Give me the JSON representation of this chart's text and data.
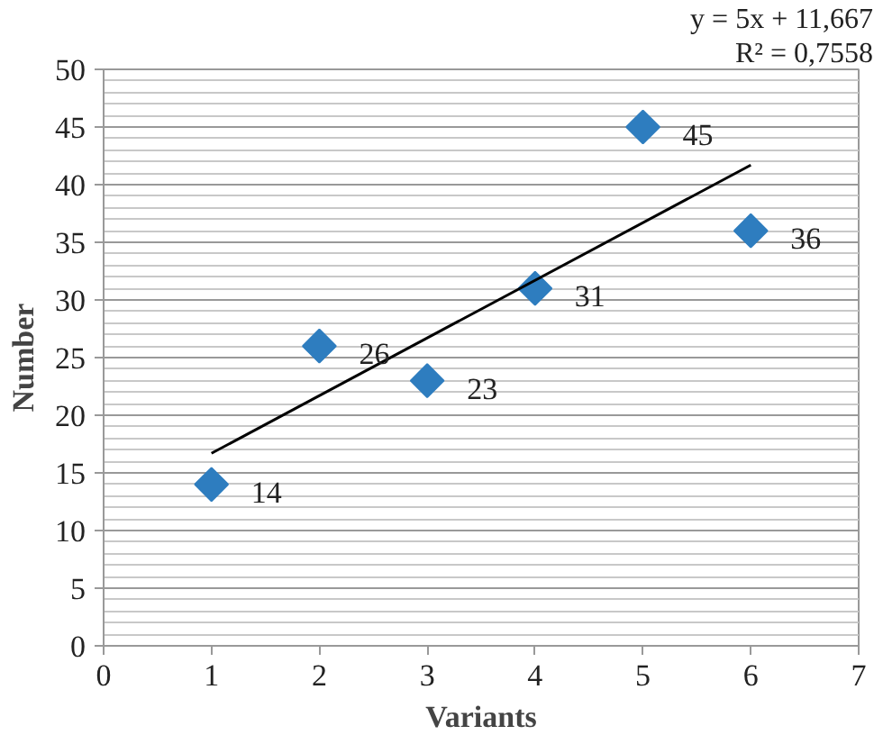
{
  "chart_data": {
    "type": "scatter",
    "xlabel": "Variants",
    "ylabel": "Number",
    "annotations": [
      "y = 5x + 11,667",
      "R² = 0,7558"
    ],
    "series": [
      {
        "color": "#2e7dbf",
        "x": [
          1,
          2,
          3,
          4,
          5,
          6
        ],
        "values": [
          14,
          26,
          23,
          31,
          45,
          36
        ],
        "marker": "diamond",
        "data_labels": true
      },
      {
        "type": "line",
        "color": "#000000",
        "x": [
          1,
          6
        ],
        "values": [
          16.7,
          41.7
        ],
        "line_style": "solid"
      }
    ],
    "xlim": [
      0,
      7
    ],
    "xticks": [
      0,
      1,
      2,
      3,
      4,
      5,
      6,
      7
    ],
    "ylim": [
      0,
      50
    ],
    "yticks": [
      0,
      5,
      10,
      15,
      20,
      25,
      30,
      35,
      40,
      45,
      50
    ],
    "grid": "y"
  }
}
